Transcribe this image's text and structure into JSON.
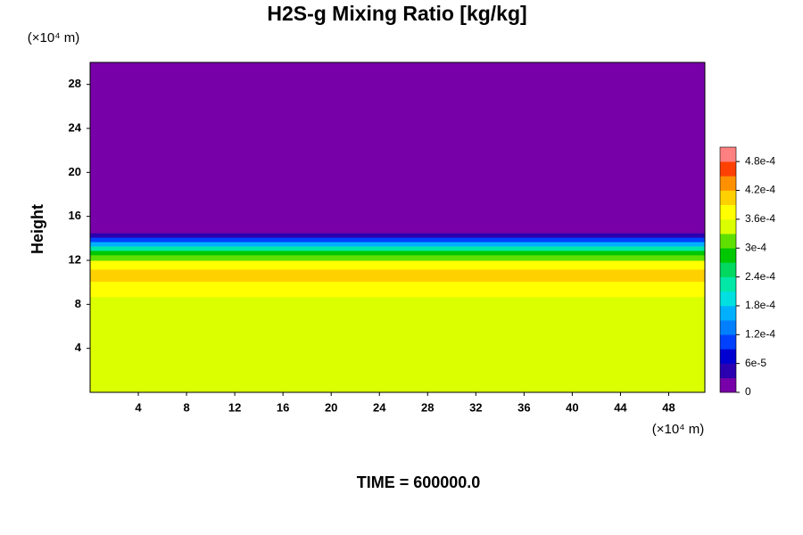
{
  "chart_data": {
    "type": "layered-contour",
    "title": "H2S-g Mixing Ratio [kg/kg]",
    "y_label": "Height",
    "y_unit": "(×10⁴ m)",
    "x_unit": "(×10⁴ m)",
    "footer": "TIME = 600000.0",
    "xlim": [
      0,
      51
    ],
    "xticks": [
      4,
      8,
      12,
      16,
      20,
      24,
      28,
      32,
      36,
      40,
      44,
      48
    ],
    "ylim": [
      0,
      30
    ],
    "yticks": [
      4,
      8,
      12,
      16,
      20,
      24,
      28
    ],
    "layers": [
      {
        "y": [
          0,
          8.7
        ],
        "value": 0.000345
      },
      {
        "y": [
          8.7,
          10.1
        ],
        "value": 0.000375
      },
      {
        "y": [
          10.1,
          11.2
        ],
        "value": 0.000405
      },
      {
        "y": [
          11.2,
          12.0
        ],
        "value": 0.000375
      },
      {
        "y": [
          12.0,
          12.5
        ],
        "value": 0.000315
      },
      {
        "y": [
          12.5,
          12.9
        ],
        "value": 0.000285
      },
      {
        "y": [
          12.9,
          13.3
        ],
        "value": 0.000225
      },
      {
        "y": [
          13.3,
          13.7
        ],
        "value": 0.000165
      },
      {
        "y": [
          13.7,
          14.1
        ],
        "value": 0.000105
      },
      {
        "y": [
          14.1,
          14.5
        ],
        "value": 4.5e-05
      },
      {
        "y": [
          14.5,
          30
        ],
        "value": 0
      }
    ],
    "colorbar": {
      "levels": [
        0,
        3e-05,
        6e-05,
        9e-05,
        0.00012,
        0.00015,
        0.00018,
        0.00021,
        0.00024,
        0.00027,
        0.0003,
        0.00033,
        0.00036,
        0.00039,
        0.00042,
        0.00045,
        0.00048,
        0.00051
      ],
      "colors": [
        "#7800a8",
        "#2a00b0",
        "#0000d0",
        "#0040ff",
        "#0080ff",
        "#00b0ff",
        "#00e0e0",
        "#00e8a8",
        "#00d860",
        "#00c800",
        "#60e000",
        "#dcff00",
        "#ffff00",
        "#ffd000",
        "#ff9000",
        "#ff4000",
        "#ff8080"
      ],
      "ticks": [
        0,
        {
          "value": 6e-05,
          "label": "6e-5"
        },
        {
          "value": 0.00012,
          "label": "1.2e-4"
        },
        {
          "value": 0.00018,
          "label": "1.8e-4"
        },
        {
          "value": 0.00024,
          "label": "2.4e-4"
        },
        {
          "value": 0.0003,
          "label": "3e-4"
        },
        {
          "value": 0.00036,
          "label": "3.6e-4"
        },
        {
          "value": 0.00042,
          "label": "4.2e-4"
        },
        {
          "value": 0.00048,
          "label": "4.8e-4"
        }
      ]
    }
  }
}
